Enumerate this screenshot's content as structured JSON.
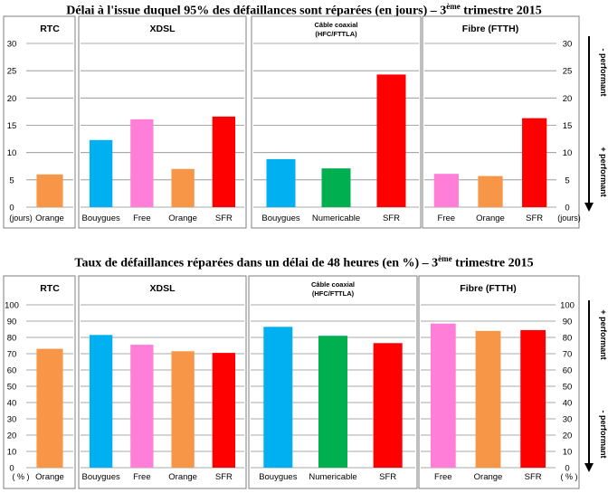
{
  "titles": {
    "top": {
      "pre": "Délai à l'issue duquel 95% des défaillances sont réparées (en jours) – 3",
      "sup": "ème",
      "post": " trimestre 2015"
    },
    "bottom": {
      "pre": "Taux de défaillances réparées dans un délai de 48 heures (en %) – 3",
      "sup": "ème",
      "post": " trimestre 2015"
    }
  },
  "colors": {
    "Orange": "#F79646",
    "Bouygues": "#00B0F0",
    "Free": "#FF7FD8",
    "SFR": "#FF0000",
    "Numericable": "#00B050"
  },
  "side_labels": {
    "top_up": "- performant",
    "top_down": "+ performant",
    "bottom_up": "+ performant",
    "bottom_down": "- performant"
  },
  "chart_data": [
    {
      "type": "bar",
      "title": "Délai à l'issue duquel 95% des défaillances sont réparées (en jours) – 3ème trimestre 2015",
      "unit_label": "(jours)",
      "ylim": [
        0,
        30
      ],
      "yticks": [
        "0",
        "5",
        "10",
        "15",
        "20",
        "25",
        "30"
      ],
      "panels": [
        {
          "name": "RTC",
          "categories": [
            "Orange"
          ],
          "values": [
            6
          ]
        },
        {
          "name": "XDSL",
          "categories": [
            "Bouygues",
            "Free",
            "Orange",
            "SFR"
          ],
          "values": [
            12.3,
            16.1,
            7.0,
            16.6
          ]
        },
        {
          "name": "Câble coaxial",
          "subname": "(HFC/FTTLA)",
          "categories": [
            "Bouygues",
            "Numericable",
            "SFR"
          ],
          "values": [
            8.8,
            7.1,
            24.3
          ]
        },
        {
          "name": "Fibre (FTTH)",
          "categories": [
            "Free",
            "Orange",
            "SFR"
          ],
          "values": [
            6.1,
            5.7,
            16.3
          ]
        }
      ]
    },
    {
      "type": "bar",
      "title": "Taux de défaillances réparées dans un délai de 48 heures (en %) – 3ème trimestre 2015",
      "unit_label": "( % )",
      "ylim": [
        0,
        100
      ],
      "yticks": [
        "0",
        "10",
        "20",
        "30",
        "40",
        "50",
        "60",
        "70",
        "80",
        "90",
        "100"
      ],
      "panels": [
        {
          "name": "RTC",
          "categories": [
            "Orange"
          ],
          "values": [
            73
          ]
        },
        {
          "name": "XDSL",
          "categories": [
            "Bouygues",
            "Free",
            "Orange",
            "SFR"
          ],
          "values": [
            81.5,
            75.5,
            71.5,
            70.5
          ]
        },
        {
          "name": "Câble coaxial",
          "subname": "(HFC/FTTLA)",
          "categories": [
            "Bouygues",
            "Numericable",
            "SFR"
          ],
          "values": [
            86.5,
            81,
            76.5
          ]
        },
        {
          "name": "Fibre (FTTH)",
          "categories": [
            "Free",
            "Orange",
            "SFR"
          ],
          "values": [
            88.5,
            84,
            84.5
          ]
        }
      ]
    }
  ]
}
